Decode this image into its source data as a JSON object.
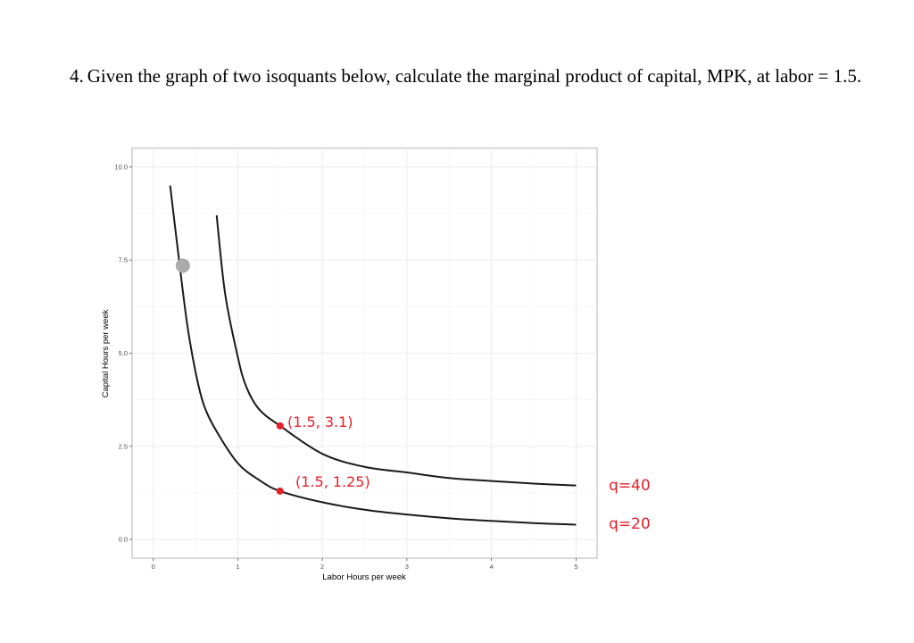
{
  "question": {
    "number": "4.",
    "text": "Given the graph of two isoquants below, calculate the marginal product of capital, MPK, at labor = 1.5."
  },
  "chart_data": {
    "type": "line",
    "xlabel": "Labor Hours per week",
    "ylabel": "Capital Hours per week",
    "xlim": [
      -0.25,
      5.25
    ],
    "ylim": [
      -0.5,
      10.5
    ],
    "x_ticks": [
      "0",
      "1",
      "2",
      "3",
      "4",
      "5"
    ],
    "y_ticks": [
      "0.0",
      "2.5",
      "5.0",
      "7.5",
      "10.0"
    ],
    "grid": true,
    "series": [
      {
        "name": "q=20",
        "x": [
          0.2,
          0.3,
          0.4,
          0.5,
          0.6,
          0.75,
          1.0,
          1.25,
          1.5,
          2.0,
          2.5,
          3.0,
          3.5,
          4.0,
          4.5,
          5.0
        ],
        "y": [
          9.5,
          7.6,
          5.8,
          4.5,
          3.6,
          2.9,
          2.05,
          1.6,
          1.3,
          1.0,
          0.8,
          0.67,
          0.57,
          0.5,
          0.44,
          0.4
        ]
      },
      {
        "name": "q=40",
        "x": [
          0.75,
          0.85,
          1.0,
          1.1,
          1.25,
          1.5,
          2.0,
          2.5,
          3.0,
          3.5,
          4.0,
          4.5,
          5.0
        ],
        "y": [
          8.7,
          6.6,
          4.9,
          4.1,
          3.5,
          3.05,
          2.3,
          1.95,
          1.8,
          1.65,
          1.57,
          1.5,
          1.45
        ]
      }
    ],
    "points": [
      {
        "x": 1.5,
        "y": 3.05,
        "color": "#e8202a"
      },
      {
        "x": 1.5,
        "y": 1.3,
        "color": "#e8202a"
      },
      {
        "x": 0.35,
        "y": 7.35,
        "color": "#aaaaaa"
      }
    ],
    "annotations": [
      {
        "text": "(1.5, 3.1)",
        "x": 1.5,
        "y": 3.05,
        "color": "#e8202a"
      },
      {
        "text": "(1.5, 1.25)",
        "x": 1.5,
        "y": 1.3,
        "color": "#e8202a"
      },
      {
        "text": "q=40",
        "color": "#e8202a"
      },
      {
        "text": "q=20",
        "color": "#e8202a"
      }
    ]
  }
}
